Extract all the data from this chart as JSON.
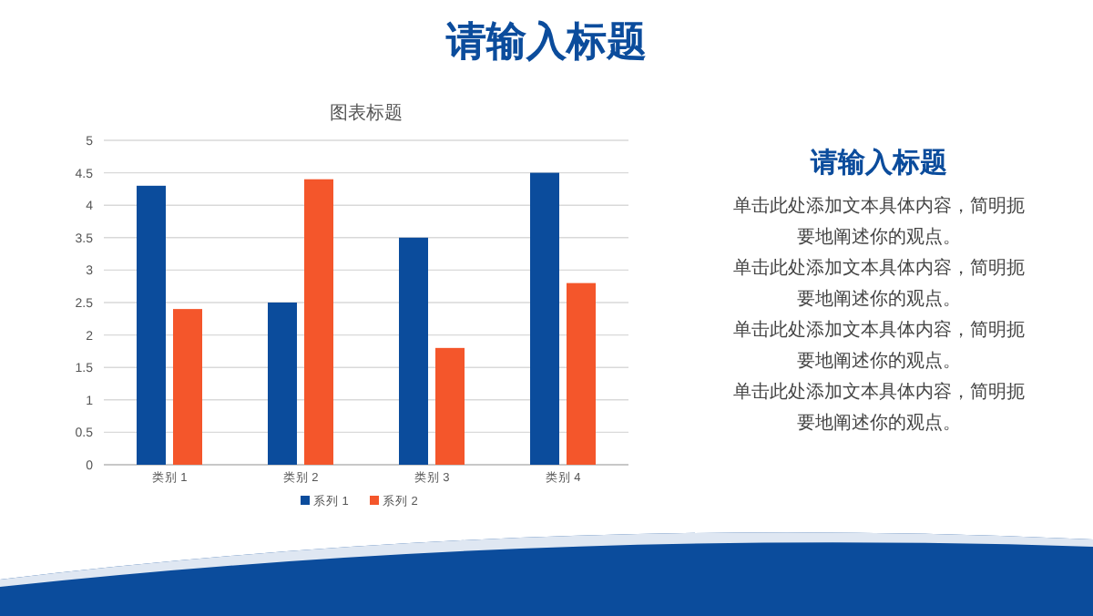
{
  "chart_data": [
    {
      "type": "other",
      "title": "请输入标题"
    },
    {
      "type": "bar",
      "title": "图表标题",
      "categories": [
        "类别 1",
        "类别 2",
        "类别 3",
        "类别 4"
      ],
      "series": [
        {
          "name": "系列 1",
          "color": "#0b4c9c",
          "values": [
            4.3,
            2.5,
            3.5,
            4.5
          ]
        },
        {
          "name": "系列 2",
          "color": "#f4562b",
          "values": [
            2.4,
            4.4,
            1.8,
            2.8
          ]
        }
      ],
      "ylim": [
        0,
        5
      ],
      "yticks": [
        0,
        0.5,
        1,
        1.5,
        2,
        2.5,
        3,
        3.5,
        4,
        4.5,
        5
      ],
      "grid": "y",
      "legend": "bottom"
    },
    {
      "type": "other",
      "title": "请输入标题",
      "annotations": [
        "单击此处添加文本具体内容，简明扼要地阐述你的观点。",
        "单击此处添加文本具体内容，简明扼要地阐述你的观点。",
        "单击此处添加文本具体内容，简明扼要地阐述你的观点。",
        "单击此处添加文本具体内容，简明扼要地阐述你的观点。"
      ]
    }
  ]
}
